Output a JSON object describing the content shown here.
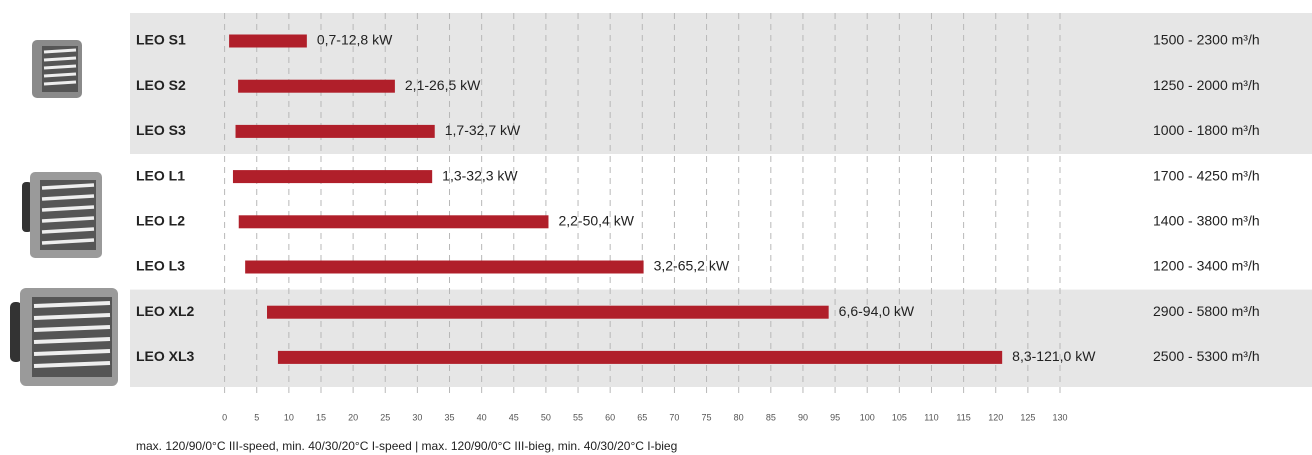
{
  "chart_data": {
    "type": "range-bar",
    "categories": [
      "LEO S1",
      "LEO S2",
      "LEO S3",
      "LEO L1",
      "LEO L2",
      "LEO L3",
      "LEO XL2",
      "LEO XL3"
    ],
    "low": [
      0.7,
      2.1,
      1.7,
      1.3,
      2.2,
      3.2,
      6.6,
      8.3
    ],
    "high": [
      12.8,
      26.5,
      32.7,
      32.3,
      50.4,
      65.2,
      94.0,
      121.0
    ],
    "value_labels": [
      "0,7-12,8 kW",
      "2,1-26,5 kW",
      "1,7-32,7 kW",
      "1,3-32,3 kW",
      "2,2-50,4 kW",
      "3,2-65,2 kW",
      "6,6-94,0 kW",
      "8,3-121,0 kW"
    ],
    "airflow": [
      "1500 - 2300 m³/h",
      "1250 - 2000 m³/h",
      "1000 - 1800 m³/h",
      "1700 - 4250 m³/h",
      "1400 - 3800 m³/h",
      "1200 - 3400 m³/h",
      "2900 - 5800 m³/h",
      "2500 - 5300 m³/h"
    ],
    "color": "#b01f2a",
    "xlim": [
      0,
      130
    ],
    "xticks": [
      0,
      5,
      10,
      15,
      20,
      25,
      30,
      35,
      40,
      45,
      50,
      55,
      60,
      65,
      70,
      75,
      80,
      85,
      90,
      95,
      100,
      105,
      110,
      115,
      120,
      125,
      130
    ],
    "grid": true,
    "note": "max. 120/90/0°C III-speed, min. 40/30/20°C I-speed | max. 120/90/0°C III-bieg, min. 40/30/20°C I-bieg"
  }
}
